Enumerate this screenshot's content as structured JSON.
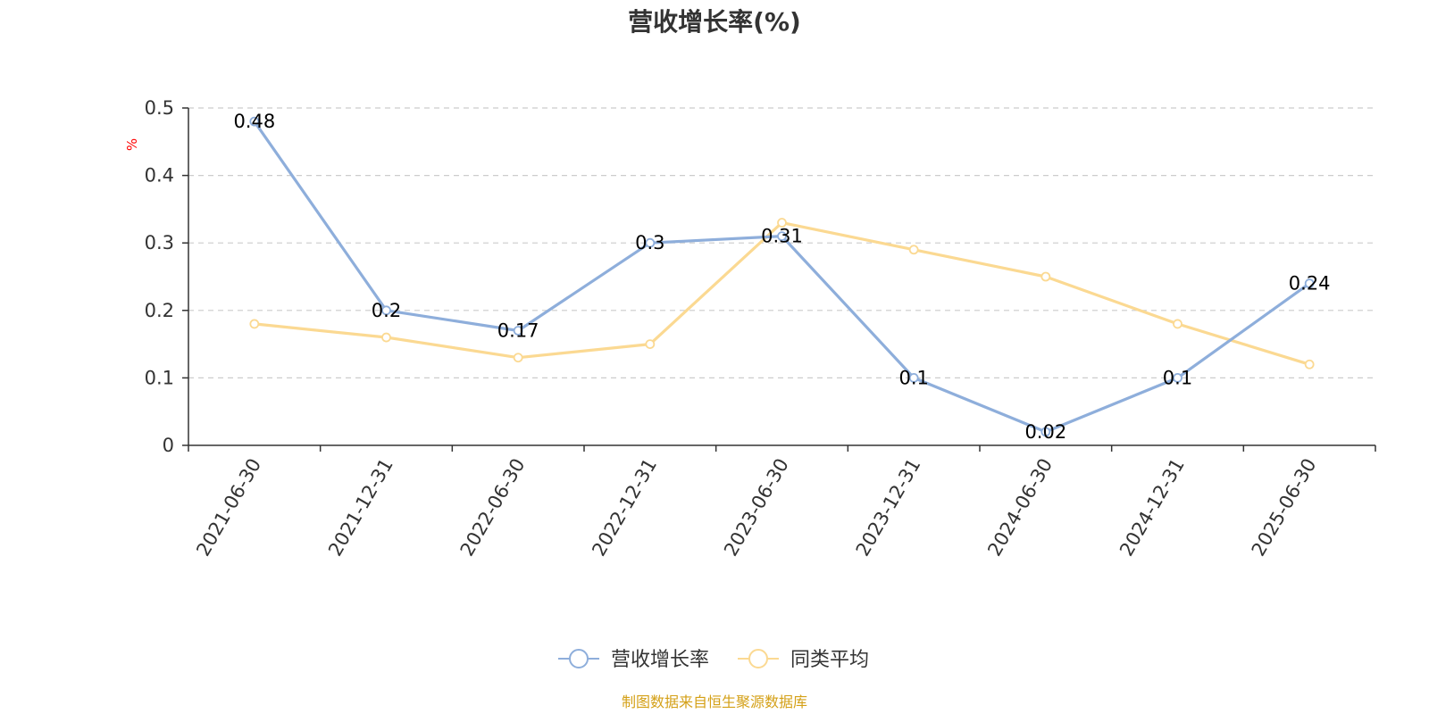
{
  "chart_data": {
    "type": "line",
    "title": "营收增长率(%)",
    "y_unit_label": "%",
    "categories": [
      "2021-06-30",
      "2021-12-31",
      "2022-06-30",
      "2022-12-31",
      "2023-06-30",
      "2023-12-31",
      "2024-06-30",
      "2024-12-31",
      "2025-06-30"
    ],
    "ylim": [
      0,
      0.5
    ],
    "yticks": [
      0,
      0.1,
      0.2,
      0.3,
      0.4,
      0.5
    ],
    "ytick_labels": [
      "0",
      "0.1",
      "0.2",
      "0.3",
      "0.4",
      "0.5"
    ],
    "grid": true,
    "legend_position": "bottom-center",
    "series": [
      {
        "name": "营收增长率",
        "color": "#8eaedb",
        "values": [
          0.48,
          0.2,
          0.17,
          0.3,
          0.31,
          0.1,
          0.02,
          0.1,
          0.24
        ],
        "data_labels": [
          "0.48",
          "0.2",
          "0.17",
          "0.3",
          "0.31",
          "0.1",
          "0.02",
          "0.1",
          "0.24"
        ]
      },
      {
        "name": "同类平均",
        "color": "#fbd992",
        "values": [
          0.18,
          0.16,
          0.13,
          0.15,
          0.33,
          0.29,
          0.25,
          0.18,
          0.12
        ]
      }
    ]
  },
  "source": "制图数据来自恒生聚源数据库"
}
